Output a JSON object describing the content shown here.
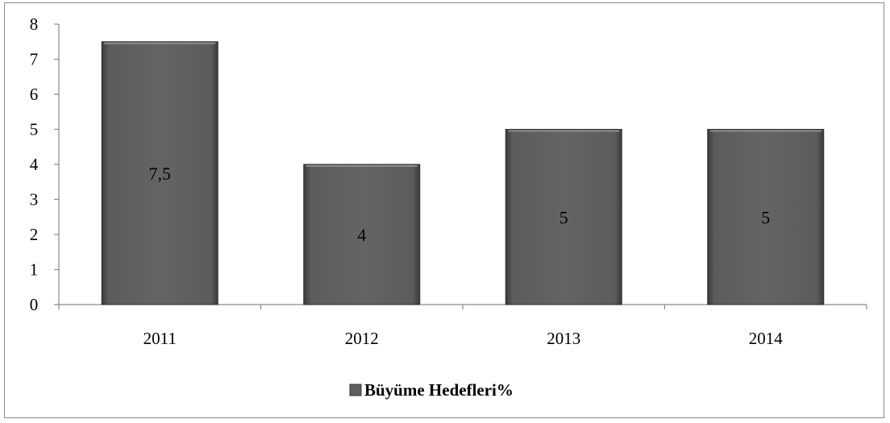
{
  "chart_data": {
    "type": "bar",
    "categories": [
      "2011",
      "2012",
      "2013",
      "2014"
    ],
    "series": [
      {
        "name": "Büyüme Hedefleri%",
        "values": [
          7.5,
          4,
          5,
          5
        ],
        "data_labels": [
          "7,5",
          "4",
          "5",
          "5"
        ],
        "color": "#5f5f5f"
      }
    ],
    "title": "",
    "xlabel": "",
    "ylabel": "",
    "ylim": [
      0,
      8
    ],
    "yticks": [
      "0",
      "1",
      "2",
      "3",
      "4",
      "5",
      "6",
      "7",
      "8"
    ],
    "grid": false,
    "legend": "bottom"
  }
}
